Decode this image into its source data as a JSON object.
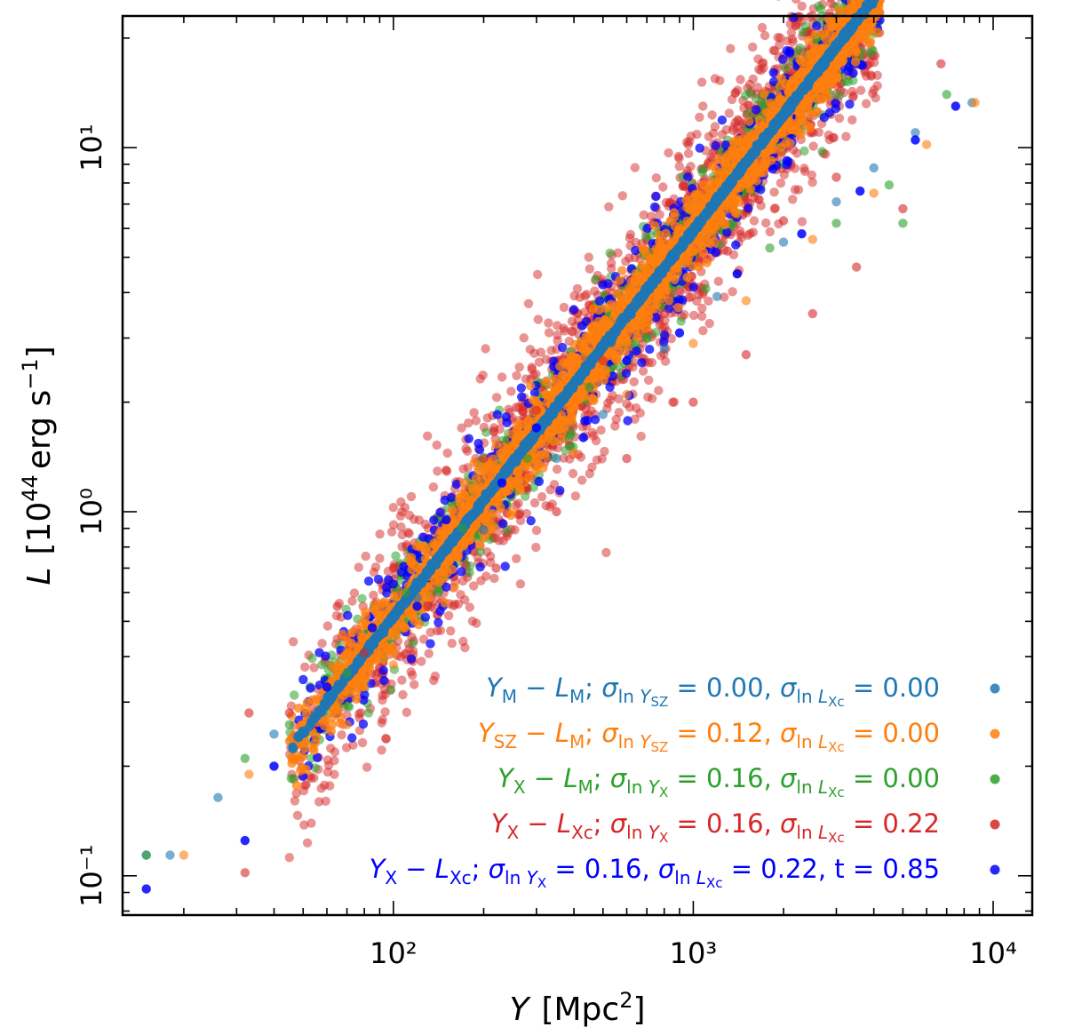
{
  "chart_data": {
    "type": "scatter",
    "title": "",
    "xlabel": "Y [Mpc²]",
    "ylabel": "L [10⁴⁴ erg s⁻¹]",
    "xscale": "log",
    "yscale": "log",
    "xlim": [
      12.5,
      13500
    ],
    "ylim": [
      0.078,
      23
    ],
    "grid": false,
    "legend_position": "lower-right",
    "x_ticks": [
      {
        "value": 100,
        "label": "10²"
      },
      {
        "value": 1000,
        "label": "10³"
      },
      {
        "value": 10000,
        "label": "10⁴"
      }
    ],
    "y_ticks": [
      {
        "value": 0.1,
        "label": "10⁻¹"
      },
      {
        "value": 1,
        "label": "10⁰"
      },
      {
        "value": 10,
        "label": "10¹"
      }
    ],
    "series": [
      {
        "name": "Y_M − L_M; σ_ln Y_SZ = 0.00, σ_ln L_Xc = 0.00",
        "color": "#1f77b4",
        "points": [
          [
            15,
            0.114
          ],
          [
            18,
            0.114
          ],
          [
            26,
            0.164
          ],
          [
            40,
            0.245
          ],
          [
            60,
            0.3
          ],
          [
            80,
            0.41
          ],
          [
            120,
            0.58
          ],
          [
            200,
            0.89
          ],
          [
            350,
            1.4
          ],
          [
            500,
            1.85
          ],
          [
            800,
            2.8
          ],
          [
            1200,
            3.9
          ],
          [
            2000,
            5.5
          ],
          [
            3000,
            7.1
          ],
          [
            4000,
            8.8
          ],
          [
            5500,
            11.0
          ],
          [
            8500,
            13.3
          ]
        ]
      },
      {
        "name": "Y_SZ − L_M; σ_ln Y_SZ = 0.12, σ_ln L_Xc = 0.00",
        "color": "#ff7f0e",
        "points": [
          [
            20,
            0.114
          ],
          [
            33,
            0.19
          ],
          [
            48,
            0.21
          ],
          [
            70,
            0.26
          ],
          [
            100,
            0.38
          ],
          [
            160,
            0.62
          ],
          [
            250,
            1.0
          ],
          [
            400,
            1.45
          ],
          [
            600,
            2.1
          ],
          [
            1000,
            2.9
          ],
          [
            1500,
            3.8
          ],
          [
            2500,
            5.6
          ],
          [
            4000,
            7.5
          ],
          [
            6000,
            10.2
          ],
          [
            8700,
            13.3
          ]
        ]
      },
      {
        "name": "Y_X − L_M; σ_ln Y_X = 0.16, σ_ln L_Xc = 0.00",
        "color": "#2ca02c",
        "points": [
          [
            15,
            0.114
          ],
          [
            32,
            0.21
          ],
          [
            45,
            0.26
          ],
          [
            70,
            0.36
          ],
          [
            110,
            0.6
          ],
          [
            170,
            0.9
          ],
          [
            280,
            1.4
          ],
          [
            450,
            2.2
          ],
          [
            700,
            3.0
          ],
          [
            1100,
            4.1
          ],
          [
            1800,
            5.3
          ],
          [
            3000,
            6.2
          ],
          [
            4500,
            7.9
          ],
          [
            5000,
            6.2
          ],
          [
            7000,
            14.0
          ]
        ]
      },
      {
        "name": "Y_X − L_Xc; σ_ln Y_X = 0.16, σ_ln L_Xc = 0.22",
        "color": "#d62728",
        "points": [
          [
            32,
            0.102
          ],
          [
            33,
            0.28
          ],
          [
            45,
            0.28
          ],
          [
            65,
            0.55
          ],
          [
            80,
            0.41
          ],
          [
            100,
            0.7
          ],
          [
            130,
            0.55
          ],
          [
            150,
            1.3
          ],
          [
            200,
            1.4
          ],
          [
            220,
            0.7
          ],
          [
            300,
            1.9
          ],
          [
            350,
            1.0
          ],
          [
            500,
            2.6
          ],
          [
            600,
            1.4
          ],
          [
            800,
            3.5
          ],
          [
            1000,
            2.0
          ],
          [
            1300,
            5.2
          ],
          [
            1500,
            2.7
          ],
          [
            2000,
            6.3
          ],
          [
            2500,
            3.5
          ],
          [
            3000,
            8.3
          ],
          [
            3500,
            4.7
          ],
          [
            5000,
            6.8
          ],
          [
            6700,
            17.0
          ]
        ]
      },
      {
        "name": "Y_X − L_Xc; σ_ln Y_X = 0.16, σ_ln L_Xc = 0.22, t = 0.85",
        "color": "#0000ff",
        "points": [
          [
            15,
            0.092
          ],
          [
            32,
            0.125
          ],
          [
            40,
            0.2
          ],
          [
            60,
            0.33
          ],
          [
            85,
            0.48
          ],
          [
            120,
            0.55
          ],
          [
            150,
            0.95
          ],
          [
            230,
            1.2
          ],
          [
            300,
            1.7
          ],
          [
            430,
            1.6
          ],
          [
            600,
            2.6
          ],
          [
            900,
            3.1
          ],
          [
            1400,
            4.5
          ],
          [
            2300,
            5.8
          ],
          [
            3600,
            7.6
          ],
          [
            5500,
            10.5
          ],
          [
            7500,
            13.0
          ]
        ]
      }
    ]
  },
  "legend": {
    "entries": [
      {
        "color": "#1f77b4",
        "main": "Y",
        "main_sub": "M",
        "rel": "L",
        "rel_sub": "M",
        "s1_var": "Y",
        "s1_sub": "SZ",
        "s1_val": "0.00",
        "s2_var": "L",
        "s2_sub": "Xc",
        "s2_val": "0.00",
        "extra": ""
      },
      {
        "color": "#ff7f0e",
        "main": "Y",
        "main_sub": "SZ",
        "rel": "L",
        "rel_sub": "M",
        "s1_var": "Y",
        "s1_sub": "SZ",
        "s1_val": "0.12",
        "s2_var": "L",
        "s2_sub": "Xc",
        "s2_val": "0.00",
        "extra": ""
      },
      {
        "color": "#2ca02c",
        "main": "Y",
        "main_sub": "X",
        "rel": "L",
        "rel_sub": "M",
        "s1_var": "Y",
        "s1_sub": "X",
        "s1_val": "0.16",
        "s2_var": "L",
        "s2_sub": "Xc",
        "s2_val": "0.00",
        "extra": ""
      },
      {
        "color": "#d62728",
        "main": "Y",
        "main_sub": "X",
        "rel": "L",
        "rel_sub": "Xc",
        "s1_var": "Y",
        "s1_sub": "X",
        "s1_val": "0.16",
        "s2_var": "L",
        "s2_sub": "Xc",
        "s2_val": "0.22",
        "extra": ""
      },
      {
        "color": "#0000ff",
        "main": "Y",
        "main_sub": "X",
        "rel": "L",
        "rel_sub": "Xc",
        "s1_var": "Y",
        "s1_sub": "X",
        "s1_val": "0.16",
        "s2_var": "L",
        "s2_sub": "Xc",
        "s2_val": "0.22",
        "extra": "t = 0.85"
      }
    ]
  }
}
